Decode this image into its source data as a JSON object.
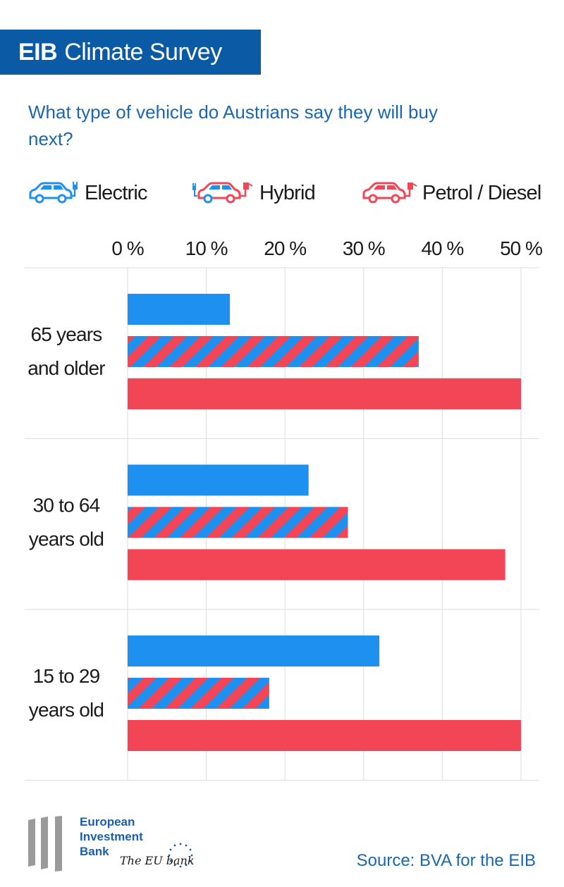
{
  "header": {
    "brand": "EIB",
    "title": "Climate Survey"
  },
  "question": "What type of vehicle do Austrians say they will buy next?",
  "legend": {
    "electric": "Electric",
    "hybrid": "Hybrid",
    "petrol": "Petrol / Diesel"
  },
  "colors": {
    "banner": "#0a5aa6",
    "question_text": "#1a67b0",
    "electric": "#1e90f0",
    "petrol": "#f24657",
    "grid": "#e2e2e2",
    "text": "#1b1b1b"
  },
  "chart_data": {
    "type": "bar",
    "orientation": "horizontal",
    "title": "What type of vehicle do Austrians say they will buy next?",
    "xlabel": "",
    "ylabel": "",
    "xlim": [
      0,
      50
    ],
    "x_ticks": [
      "0 %",
      "10 %",
      "20 %",
      "30 %",
      "40 %",
      "50 %"
    ],
    "grid": true,
    "legend_position": "top",
    "categories": [
      [
        "65 years",
        "and older"
      ],
      [
        "30 to 64",
        "years old"
      ],
      [
        "15 to 29",
        "years old"
      ]
    ],
    "series": [
      {
        "name": "Electric",
        "key": "electric",
        "values": [
          13,
          23,
          32
        ]
      },
      {
        "name": "Hybrid",
        "key": "hybrid",
        "values": [
          37,
          28,
          18
        ]
      },
      {
        "name": "Petrol / Diesel",
        "key": "petrol",
        "values": [
          50,
          48,
          50
        ]
      }
    ]
  },
  "footer": {
    "logo_lines": [
      "European",
      "Investment",
      "Bank"
    ],
    "tagline": "The EU bank",
    "source": "Source: BVA for the EIB"
  }
}
